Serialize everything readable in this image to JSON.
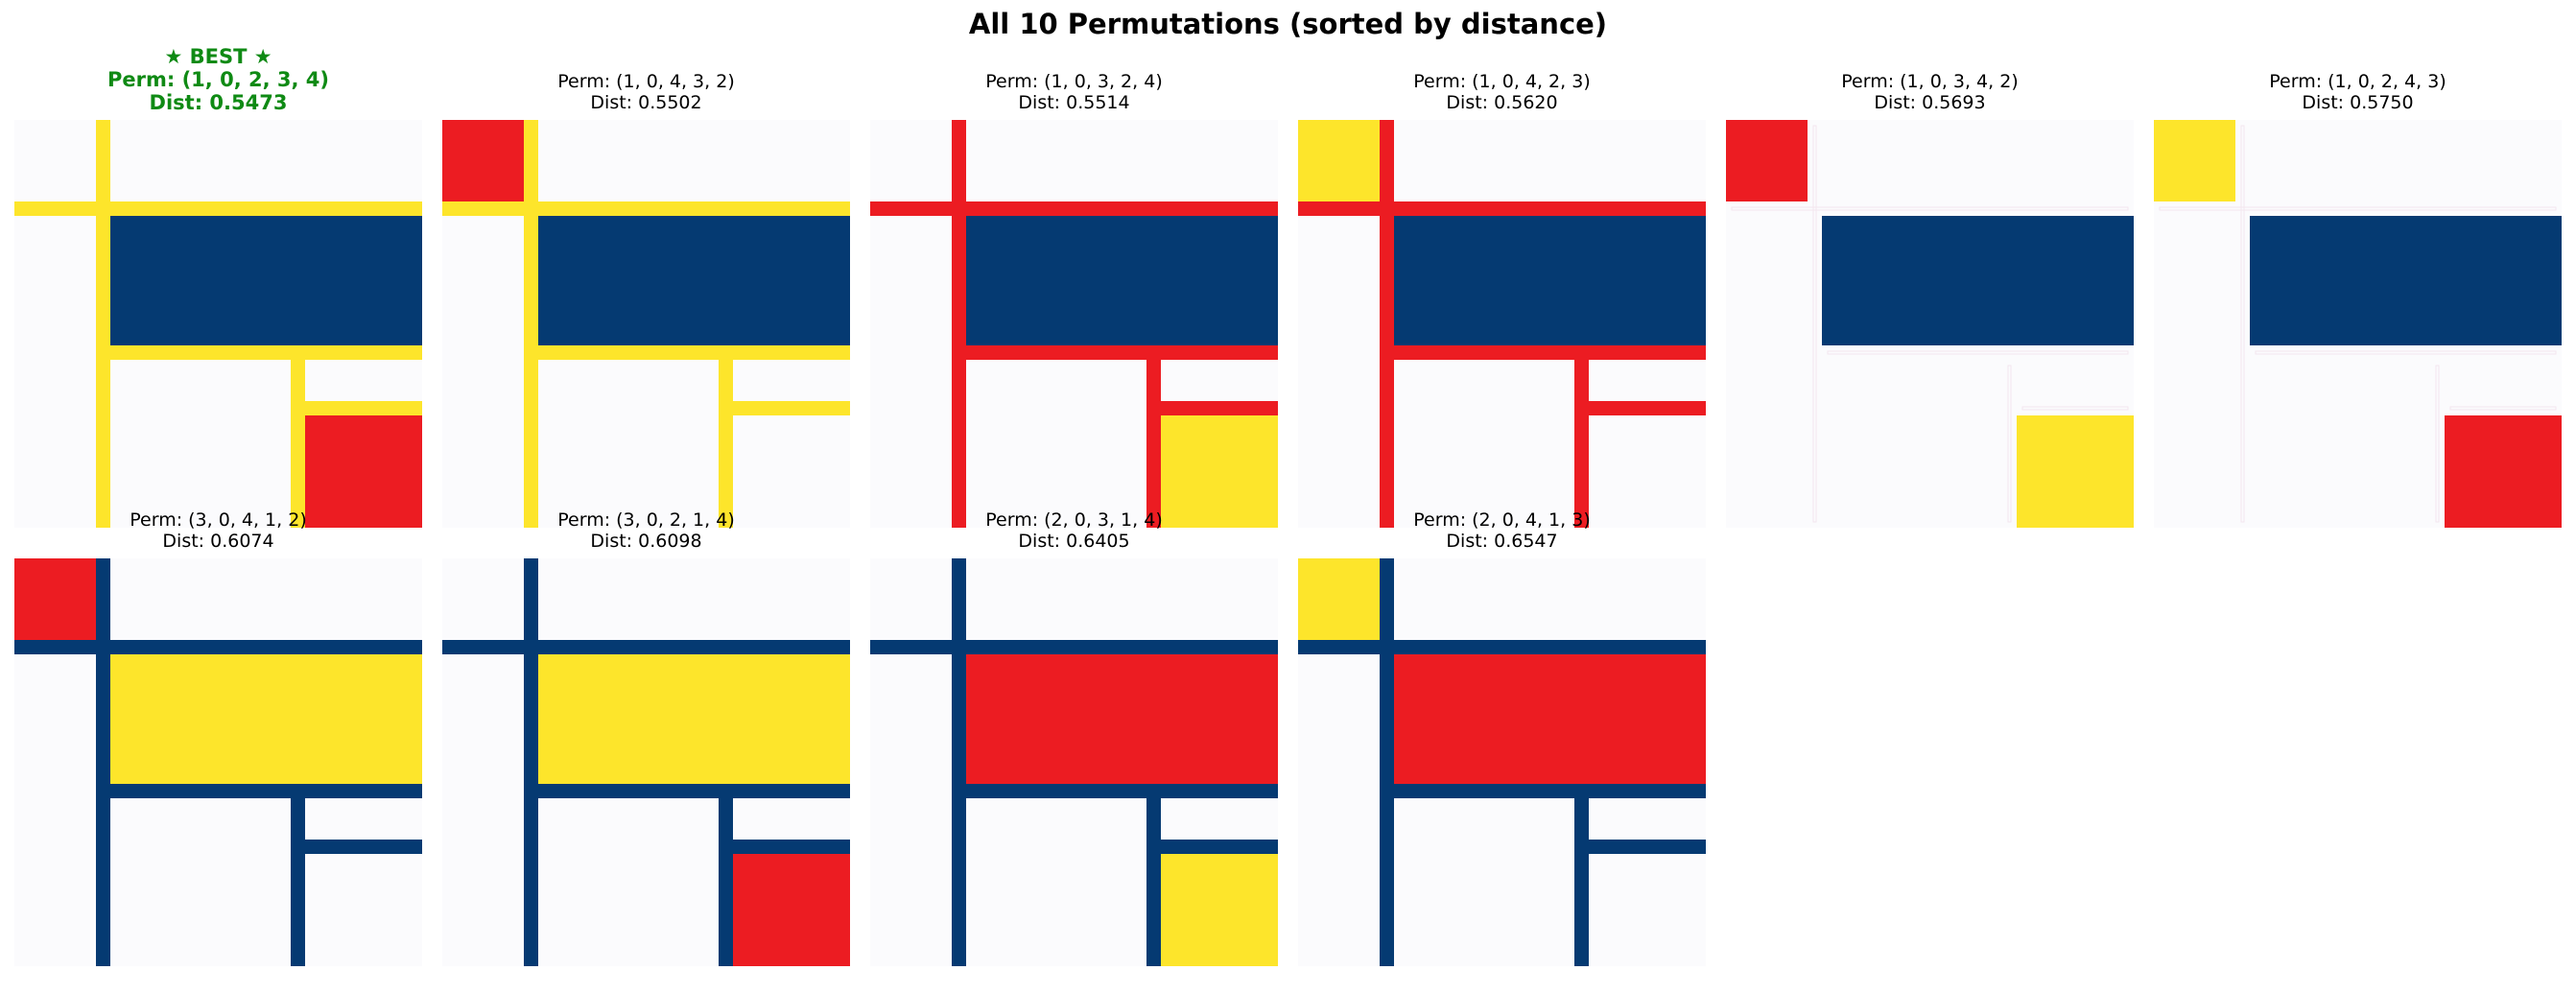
{
  "title": "All 10 Permutations (sorted by distance)",
  "colors": {
    "background": "#fbfbfd",
    "dark_blue": "#053a72",
    "red": "#ec1c22",
    "yellow": "#fde52b",
    "best_text": "#0f8a14"
  },
  "chart_data": {
    "type": "image-grid",
    "layout": {
      "rows": 2,
      "cols": 6
    },
    "best_label": "★ BEST ★",
    "panels": [
      {
        "perm_label": "Perm: (1, 0, 2, 3, 4)",
        "dist_label": "Dist: 0.5473",
        "perm": [
          1,
          0,
          2,
          3,
          4
        ],
        "dist": 0.5473,
        "best": true,
        "colors": {
          "grid": "#fde52b",
          "top_left": "#fbfbfd",
          "main": "#053a72",
          "bottom_right": "#ec1c22"
        }
      },
      {
        "perm_label": "Perm: (1, 0, 4, 3, 2)",
        "dist_label": "Dist: 0.5502",
        "perm": [
          1,
          0,
          4,
          3,
          2
        ],
        "dist": 0.5502,
        "best": false,
        "colors": {
          "grid": "#fde52b",
          "top_left": "#ec1c22",
          "main": "#053a72",
          "bottom_right": "#fbfbfd"
        }
      },
      {
        "perm_label": "Perm: (1, 0, 3, 2, 4)",
        "dist_label": "Dist: 0.5514",
        "perm": [
          1,
          0,
          3,
          2,
          4
        ],
        "dist": 0.5514,
        "best": false,
        "colors": {
          "grid": "#ec1c22",
          "top_left": "#fbfbfd",
          "main": "#053a72",
          "bottom_right": "#fde52b"
        }
      },
      {
        "perm_label": "Perm: (1, 0, 4, 2, 3)",
        "dist_label": "Dist: 0.5620",
        "perm": [
          1,
          0,
          4,
          2,
          3
        ],
        "dist": 0.562,
        "best": false,
        "colors": {
          "grid": "#ec1c22",
          "top_left": "#fde52b",
          "main": "#053a72",
          "bottom_right": "#fbfbfd"
        }
      },
      {
        "perm_label": "Perm: (1, 0, 3, 4, 2)",
        "dist_label": "Dist: 0.5693",
        "perm": [
          1,
          0,
          3,
          4,
          2
        ],
        "dist": 0.5693,
        "best": false,
        "colors": {
          "grid": "#f3e6ee",
          "top_left": "#ec1c22",
          "main": "#053a72",
          "bottom_right": "#fde52b"
        }
      },
      {
        "perm_label": "Perm: (1, 0, 2, 4, 3)",
        "dist_label": "Dist: 0.5750",
        "perm": [
          1,
          0,
          2,
          4,
          3
        ],
        "dist": 0.575,
        "best": false,
        "colors": {
          "grid": "#f3e6ee",
          "top_left": "#fde52b",
          "main": "#053a72",
          "bottom_right": "#ec1c22"
        }
      },
      {
        "perm_label": "Perm: (3, 0, 4, 1, 2)",
        "dist_label": "Dist: 0.6074",
        "perm": [
          3,
          0,
          4,
          1,
          2
        ],
        "dist": 0.6074,
        "best": false,
        "colors": {
          "grid": "#053a72",
          "top_left": "#ec1c22",
          "main": "#fde52b",
          "bottom_right": "#fbfbfd"
        }
      },
      {
        "perm_label": "Perm: (3, 0, 2, 1, 4)",
        "dist_label": "Dist: 0.6098",
        "perm": [
          3,
          0,
          2,
          1,
          4
        ],
        "dist": 0.6098,
        "best": false,
        "colors": {
          "grid": "#053a72",
          "top_left": "#fbfbfd",
          "main": "#fde52b",
          "bottom_right": "#ec1c22"
        }
      },
      {
        "perm_label": "Perm: (2, 0, 3, 1, 4)",
        "dist_label": "Dist: 0.6405",
        "perm": [
          2,
          0,
          3,
          1,
          4
        ],
        "dist": 0.6405,
        "best": false,
        "colors": {
          "grid": "#053a72",
          "top_left": "#fbfbfd",
          "main": "#ec1c22",
          "bottom_right": "#fde52b"
        }
      },
      {
        "perm_label": "Perm: (2, 0, 4, 1, 3)",
        "dist_label": "Dist: 0.6547",
        "perm": [
          2,
          0,
          4,
          1,
          3
        ],
        "dist": 0.6547,
        "best": false,
        "colors": {
          "grid": "#053a72",
          "top_left": "#fde52b",
          "main": "#ec1c22",
          "bottom_right": "#fbfbfd"
        }
      }
    ]
  }
}
